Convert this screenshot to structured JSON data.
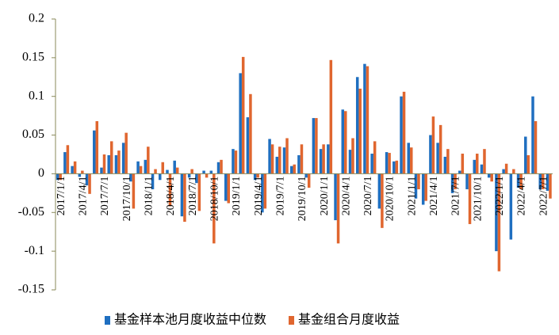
{
  "chart_data": {
    "type": "bar",
    "categories": [
      "2017/1/1",
      null,
      null,
      "2017/4/1",
      null,
      null,
      "2017/7/1",
      null,
      null,
      "2017/10/1",
      null,
      null,
      "2018/1/1",
      null,
      null,
      "2018/4/1",
      null,
      null,
      "2018/7/1",
      null,
      null,
      "2018/10/1",
      null,
      null,
      "2019/1/1",
      null,
      null,
      "2019/4/1",
      null,
      null,
      "2019/7/1",
      null,
      null,
      "2019/10/1",
      null,
      null,
      "2020/1/1",
      null,
      null,
      "2020/4/1",
      null,
      null,
      "2020/7/1",
      null,
      null,
      "2020/10/1",
      null,
      null,
      "2021/1/1",
      null,
      null,
      "2021/4/1",
      null,
      null,
      "2021/7/1",
      null,
      null,
      "2021/10/1",
      null,
      null,
      "2022/1/1",
      null,
      null,
      "2022/4/1",
      null,
      null,
      "2022/7/1",
      null
    ],
    "series": [
      {
        "name": "基金样本池月度收益中位数",
        "color": "#1f6fc0",
        "values": [
          -0.008,
          0.028,
          0.01,
          -0.004,
          -0.015,
          0.056,
          0.008,
          0.024,
          0.024,
          0.04,
          -0.01,
          0.016,
          0.018,
          -0.02,
          -0.008,
          0.005,
          0.017,
          -0.055,
          -0.005,
          -0.012,
          0.004,
          0.004,
          0.015,
          -0.035,
          0.032,
          0.13,
          0.073,
          -0.008,
          -0.05,
          0.045,
          0.022,
          0.034,
          0.01,
          0.024,
          -0.005,
          0.072,
          0.032,
          0.038,
          -0.06,
          0.083,
          0.031,
          0.125,
          0.142,
          0.026,
          -0.045,
          0.028,
          0.016,
          0.1,
          0.04,
          -0.032,
          -0.04,
          0.05,
          0.04,
          0.022,
          -0.025,
          0.004,
          -0.02,
          0.018,
          0.012,
          -0.005,
          -0.1,
          0.006,
          -0.085,
          -0.018,
          0.048,
          0.1,
          -0.02,
          -0.022
        ]
      },
      {
        "name": "基金组合月度收益",
        "color": "#e0662f",
        "values": [
          -0.008,
          0.037,
          0.016,
          0.004,
          -0.026,
          0.068,
          0.025,
          0.042,
          0.03,
          0.053,
          -0.045,
          0.01,
          0.035,
          0.006,
          0.015,
          -0.042,
          0.008,
          -0.062,
          0.006,
          -0.048,
          -0.005,
          -0.09,
          0.018,
          -0.038,
          0.03,
          0.151,
          0.103,
          -0.005,
          -0.045,
          0.038,
          0.035,
          0.046,
          0.012,
          0.038,
          -0.018,
          0.072,
          0.038,
          0.147,
          -0.09,
          0.081,
          0.046,
          0.11,
          0.139,
          0.042,
          -0.07,
          0.027,
          0.017,
          0.106,
          0.034,
          -0.02,
          -0.035,
          0.074,
          0.063,
          0.032,
          -0.02,
          0.026,
          -0.065,
          0.026,
          0.032,
          -0.01,
          -0.126,
          0.013,
          0.006,
          -0.02,
          0.024,
          0.068,
          -0.02,
          -0.032
        ]
      }
    ],
    "ylim": [
      -0.15,
      0.2
    ],
    "yticks": [
      -0.15,
      -0.1,
      -0.05,
      0,
      0.05,
      0.1,
      0.15,
      0.2
    ],
    "grid": false
  }
}
